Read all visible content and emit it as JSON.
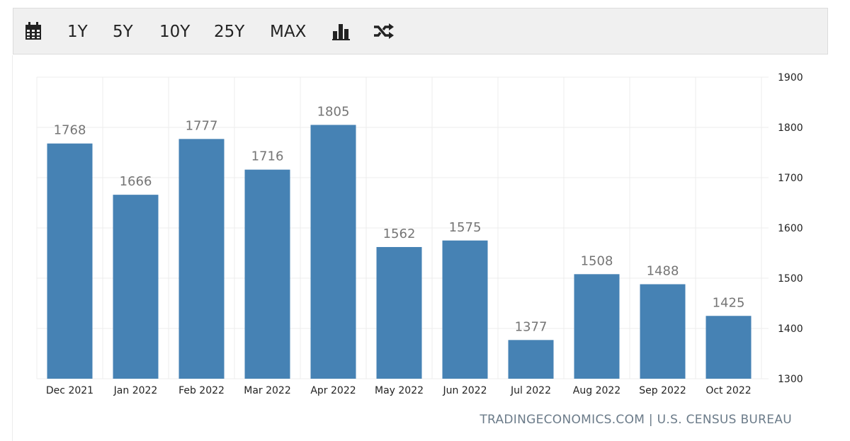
{
  "toolbar": {
    "calendar_icon": "calendar-icon",
    "ranges": [
      "1Y",
      "5Y",
      "10Y",
      "25Y",
      "MAX"
    ],
    "bar_chart_icon": "bar-chart-icon",
    "shuffle_icon": "shuffle-icon"
  },
  "source": "TRADINGECONOMICS.COM | U.S. CENSUS BUREAU",
  "colors": {
    "bar": "#4682b4",
    "grid": "#ececec",
    "label": "#757575",
    "axis_text": "#222222",
    "source": "#6b7b89"
  },
  "chart_data": {
    "type": "bar",
    "categories": [
      "Dec 2021",
      "Jan 2022",
      "Feb 2022",
      "Mar 2022",
      "Apr 2022",
      "May 2022",
      "Jun 2022",
      "Jul 2022",
      "Aug 2022",
      "Sep 2022",
      "Oct 2022"
    ],
    "values": [
      1768,
      1666,
      1777,
      1716,
      1805,
      1562,
      1575,
      1377,
      1508,
      1488,
      1425
    ],
    "data_labels": [
      "1768",
      "1666",
      "1777",
      "1716",
      "1805",
      "1562",
      "1575",
      "1377",
      "1508",
      "1488",
      "1425"
    ],
    "y_ticks": [
      "1300",
      "1400",
      "1500",
      "1600",
      "1700",
      "1800",
      "1900"
    ],
    "ylim": [
      1300,
      1900
    ],
    "y_axis_position": "right",
    "grid": true,
    "legend": false
  }
}
